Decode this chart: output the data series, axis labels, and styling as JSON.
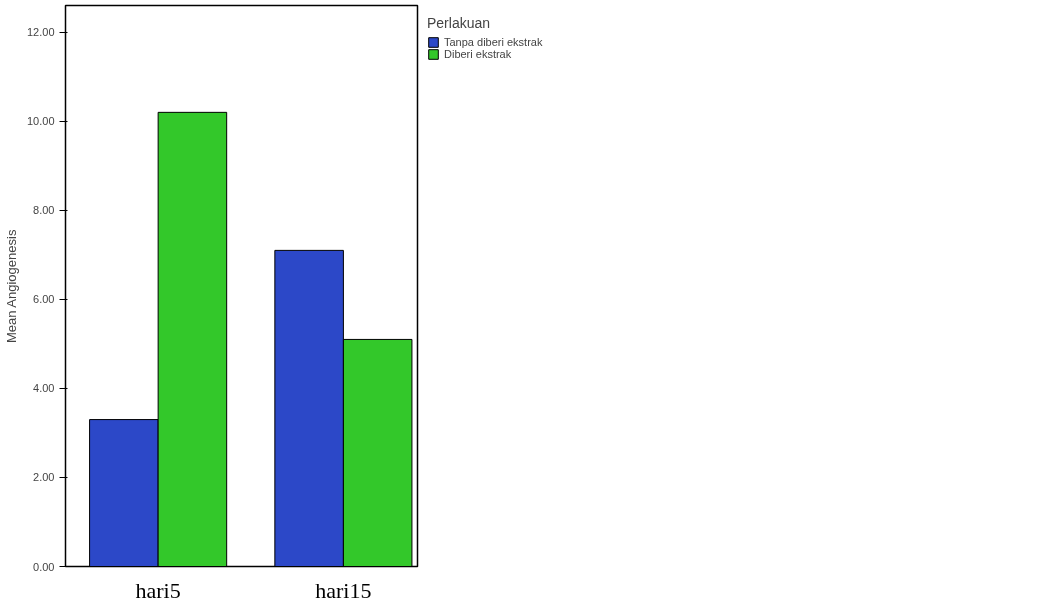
{
  "chart_data": {
    "type": "bar",
    "ylabel": "Mean Angiogenesis",
    "legend_title": "Perlakuan",
    "categories": [
      "hari5",
      "hari15"
    ],
    "series": [
      {
        "name": "Tanpa diberi ekstrak",
        "color": "#2c48c8",
        "values": [
          3.3,
          7.1
        ]
      },
      {
        "name": "Diberi ekstrak",
        "color": "#33c82a",
        "values": [
          10.2,
          5.1
        ]
      }
    ],
    "ylim": [
      0,
      12.6
    ],
    "yticks": [
      {
        "value": 0,
        "label": "0.00"
      },
      {
        "value": 2,
        "label": "2.00"
      },
      {
        "value": 4,
        "label": "4.00"
      },
      {
        "value": 6,
        "label": "6.00"
      },
      {
        "value": 8,
        "label": "8.00"
      },
      {
        "value": 10,
        "label": "10.00"
      },
      {
        "value": 12,
        "label": "12.00"
      }
    ],
    "grid": false,
    "legend": "top right"
  }
}
